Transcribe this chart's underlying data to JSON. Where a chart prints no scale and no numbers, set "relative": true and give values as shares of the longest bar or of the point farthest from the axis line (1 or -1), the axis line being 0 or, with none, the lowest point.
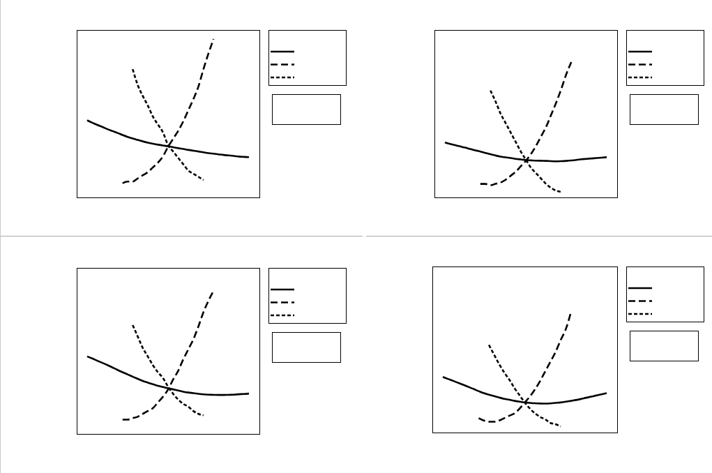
{
  "chart_data": [
    {
      "type": "line",
      "relative": true,
      "categories": [
        null,
        null,
        null,
        null,
        null,
        null,
        null,
        null,
        null,
        null,
        null,
        null,
        null,
        null,
        null,
        null,
        null,
        null,
        null,
        null,
        null,
        null,
        null,
        null,
        null,
        null,
        null,
        null,
        null,
        null,
        null,
        null,
        null
      ],
      "series": [
        {
          "color": "#000000",
          "line_style": "solid",
          "values": [
            0.487,
            0.472,
            0.458,
            0.445,
            0.431,
            0.419,
            0.407,
            0.394,
            0.382,
            0.372,
            0.363,
            0.354,
            0.346,
            0.339,
            0.333,
            0.328,
            0.323,
            0.317,
            0.311,
            0.306,
            0.3,
            0.295,
            0.29,
            0.285,
            0.28,
            0.276,
            0.272,
            0.268,
            0.265,
            0.262,
            0.258,
            0.256,
            0.254
          ]
        },
        {
          "color": "#000000",
          "line_style": "dashed",
          "values": [
            null,
            null,
            null,
            null,
            null,
            null,
            null,
            0.09,
            0.1,
            0.1,
            0.12,
            0.14,
            0.16,
            0.19,
            0.22,
            0.26,
            0.32,
            0.37,
            0.42,
            0.48,
            0.55,
            0.62,
            0.7,
            0.81,
            0.91,
            1.0,
            null,
            null,
            null,
            null,
            null,
            null,
            null
          ]
        },
        {
          "color": "#000000",
          "line_style": "dotted",
          "values": [
            null,
            null,
            null,
            null,
            null,
            null,
            null,
            null,
            null,
            0.81,
            0.71,
            0.64,
            0.58,
            0.51,
            0.46,
            0.41,
            0.33,
            0.29,
            0.25,
            0.21,
            0.17,
            0.15,
            0.13,
            0.11,
            null,
            null,
            null,
            null,
            null,
            null,
            null,
            null,
            null
          ]
        }
      ]
    },
    {
      "type": "line",
      "relative": true,
      "categories": [
        null,
        null,
        null,
        null,
        null,
        null,
        null,
        null,
        null,
        null,
        null,
        null,
        null,
        null,
        null,
        null,
        null,
        null,
        null,
        null,
        null,
        null,
        null,
        null,
        null,
        null,
        null,
        null,
        null,
        null,
        null,
        null,
        null
      ],
      "series": [
        {
          "color": "#000000",
          "line_style": "solid",
          "values": [
            0.406,
            0.395,
            0.386,
            0.377,
            0.368,
            0.358,
            0.348,
            0.339,
            0.329,
            0.319,
            0.31,
            0.302,
            0.296,
            0.291,
            0.285,
            0.281,
            0.276,
            0.274,
            0.272,
            0.271,
            0.27,
            0.268,
            0.267,
            0.268,
            0.27,
            0.273,
            0.277,
            0.282,
            0.285,
            0.288,
            0.291,
            0.294,
            0.297
          ]
        },
        {
          "color": "#000000",
          "line_style": "dashed",
          "values": [
            null,
            null,
            null,
            null,
            null,
            null,
            null,
            0.1,
            0.1,
            0.09,
            0.1,
            0.11,
            0.13,
            0.16,
            0.19,
            0.23,
            0.27,
            0.32,
            0.38,
            0.45,
            0.52,
            0.61,
            0.7,
            0.8,
            0.91,
            1.0,
            null,
            null,
            null,
            null,
            null,
            null,
            null
          ]
        },
        {
          "color": "#000000",
          "line_style": "dotted",
          "values": [
            null,
            null,
            null,
            null,
            null,
            null,
            null,
            null,
            null,
            0.79,
            0.71,
            0.62,
            0.55,
            0.48,
            0.41,
            0.34,
            0.28,
            0.22,
            0.18,
            0.14,
            0.1,
            0.07,
            0.05,
            0.04,
            null,
            null,
            null,
            null,
            null,
            null,
            null,
            null,
            null
          ]
        }
      ]
    },
    {
      "type": "line",
      "relative": true,
      "categories": [
        null,
        null,
        null,
        null,
        null,
        null,
        null,
        null,
        null,
        null,
        null,
        null,
        null,
        null,
        null,
        null,
        null,
        null,
        null,
        null,
        null,
        null,
        null,
        null,
        null,
        null,
        null,
        null,
        null,
        null,
        null,
        null,
        null
      ],
      "series": [
        {
          "color": "#000000",
          "line_style": "solid",
          "values": [
            0.541,
            0.527,
            0.511,
            0.496,
            0.481,
            0.464,
            0.447,
            0.431,
            0.416,
            0.4,
            0.385,
            0.37,
            0.358,
            0.347,
            0.336,
            0.327,
            0.319,
            0.311,
            0.303,
            0.295,
            0.289,
            0.285,
            0.28,
            0.276,
            0.274,
            0.273,
            0.272,
            0.272,
            0.273,
            0.274,
            0.277,
            0.279,
            0.282
          ]
        },
        {
          "color": "#000000",
          "line_style": "dashed",
          "values": [
            null,
            null,
            null,
            null,
            null,
            null,
            null,
            0.1,
            0.1,
            0.11,
            0.12,
            0.14,
            0.16,
            0.18,
            0.22,
            0.26,
            0.31,
            0.38,
            0.44,
            0.52,
            0.59,
            0.66,
            0.75,
            0.85,
            0.93,
            1.0,
            null,
            null,
            null,
            null,
            null,
            null,
            null
          ]
        },
        {
          "color": "#000000",
          "line_style": "dotted",
          "values": [
            null,
            null,
            null,
            null,
            null,
            null,
            null,
            null,
            null,
            0.76,
            0.68,
            0.6,
            0.54,
            0.48,
            0.43,
            0.39,
            0.33,
            0.28,
            0.24,
            0.21,
            0.19,
            0.16,
            0.14,
            0.13,
            null,
            null,
            null,
            null,
            null,
            null,
            null,
            null,
            null
          ]
        }
      ]
    },
    {
      "type": "line",
      "relative": true,
      "categories": [
        null,
        null,
        null,
        null,
        null,
        null,
        null,
        null,
        null,
        null,
        null,
        null,
        null,
        null,
        null,
        null,
        null,
        null,
        null,
        null,
        null,
        null,
        null,
        null,
        null,
        null,
        null,
        null,
        null,
        null,
        null,
        null,
        null
      ],
      "series": [
        {
          "color": "#000000",
          "line_style": "solid",
          "values": [
            0.464,
            0.447,
            0.431,
            0.414,
            0.398,
            0.38,
            0.363,
            0.345,
            0.328,
            0.316,
            0.304,
            0.292,
            0.281,
            0.273,
            0.264,
            0.257,
            0.251,
            0.247,
            0.244,
            0.242,
            0.241,
            0.243,
            0.247,
            0.251,
            0.257,
            0.264,
            0.271,
            0.28,
            0.29,
            0.299,
            0.309,
            0.318,
            0.328
          ]
        },
        {
          "color": "#000000",
          "line_style": "dashed",
          "values": [
            null,
            null,
            null,
            null,
            null,
            null,
            null,
            0.12,
            0.1,
            0.09,
            0.09,
            0.1,
            0.12,
            0.14,
            0.16,
            0.2,
            0.25,
            0.3,
            0.36,
            0.43,
            0.51,
            0.59,
            0.67,
            0.77,
            0.86,
            1.0,
            null,
            null,
            null,
            null,
            null,
            null,
            null
          ]
        },
        {
          "color": "#000000",
          "line_style": "dotted",
          "values": [
            null,
            null,
            null,
            null,
            null,
            null,
            null,
            null,
            null,
            0.73,
            0.65,
            0.57,
            0.5,
            0.44,
            0.37,
            0.31,
            0.25,
            0.2,
            0.16,
            0.13,
            0.11,
            0.08,
            0.07,
            0.05,
            null,
            null,
            null,
            null,
            null,
            null,
            null,
            null,
            null
          ]
        }
      ]
    }
  ]
}
